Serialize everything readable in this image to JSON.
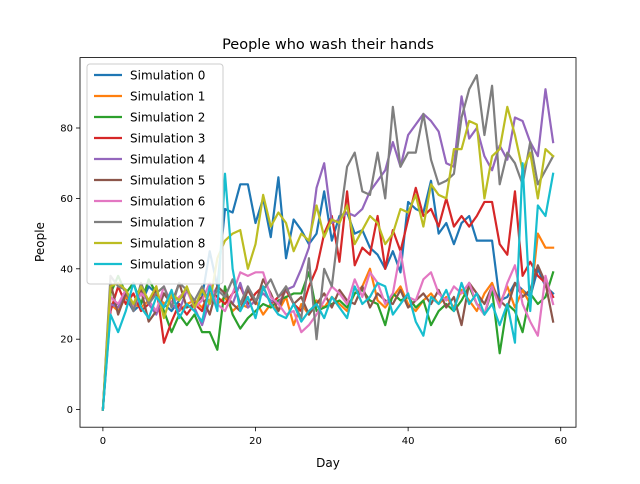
{
  "chart_data": {
    "type": "line",
    "title": "People who wash their hands",
    "xlabel": "Day",
    "ylabel": "People",
    "xlim": [
      -3,
      62
    ],
    "ylim": [
      -5,
      100
    ],
    "xticks": [
      0,
      20,
      40,
      60
    ],
    "yticks": [
      0,
      20,
      40,
      60,
      80
    ],
    "grid": false,
    "legend_position": "upper-left",
    "series": [
      {
        "name": "Simulation 0",
        "color": "#1f77b4",
        "values": [
          0,
          30,
          30,
          32,
          28,
          30,
          35,
          33,
          30,
          28,
          31,
          34,
          30,
          32,
          45,
          35,
          57,
          56,
          64,
          64,
          53,
          60,
          49,
          66,
          43,
          54,
          51,
          47,
          50,
          62,
          48,
          55,
          56,
          50,
          51,
          46,
          44,
          40,
          45,
          39,
          59,
          57,
          56,
          65,
          50,
          53,
          47,
          53,
          55,
          48,
          48,
          48,
          31,
          32,
          36,
          34,
          32,
          40,
          35,
          33
        ]
      },
      {
        "name": "Simulation 1",
        "color": "#ff7f0e",
        "values": [
          0,
          30,
          28,
          32,
          30,
          29,
          31,
          33,
          30,
          32,
          28,
          30,
          31,
          29,
          33,
          30,
          32,
          28,
          30,
          29,
          31,
          27,
          30,
          28,
          32,
          24,
          30,
          27,
          31,
          29,
          32,
          30,
          28,
          33,
          35,
          40,
          31,
          29,
          32,
          35,
          30,
          28,
          31,
          33,
          30,
          32,
          29,
          34,
          31,
          28,
          33,
          36,
          30,
          35,
          29,
          34,
          30,
          50,
          46,
          46
        ]
      },
      {
        "name": "Simulation 2",
        "color": "#2ca02c",
        "values": [
          0,
          33,
          38,
          33,
          36,
          30,
          37,
          33,
          28,
          22,
          27,
          24,
          27,
          22,
          22,
          17,
          35,
          27,
          23,
          26,
          28,
          30,
          29,
          31,
          32,
          33,
          33,
          39,
          28,
          29,
          30,
          31,
          29,
          33,
          34,
          31,
          30,
          24,
          33,
          31,
          32,
          29,
          31,
          24,
          28,
          30,
          28,
          31,
          35,
          30,
          27,
          34,
          16,
          30,
          28,
          22,
          33,
          30,
          32,
          39
        ]
      },
      {
        "name": "Simulation 3",
        "color": "#d62728",
        "values": [
          0,
          28,
          35,
          30,
          33,
          28,
          30,
          35,
          19,
          25,
          30,
          27,
          30,
          28,
          34,
          32,
          30,
          33,
          35,
          30,
          33,
          35,
          30,
          32,
          34,
          30,
          28,
          35,
          40,
          50,
          55,
          42,
          62,
          41,
          46,
          44,
          55,
          40,
          51,
          45,
          54,
          63,
          55,
          57,
          52,
          60,
          52,
          55,
          52,
          55,
          59,
          59,
          47,
          44,
          62,
          38,
          42,
          38,
          36,
          32
        ]
      },
      {
        "name": "Simulation 4",
        "color": "#9467bd",
        "values": [
          0,
          30,
          29,
          34,
          28,
          35,
          30,
          27,
          33,
          30,
          28,
          34,
          29,
          24,
          31,
          35,
          33,
          30,
          36,
          29,
          31,
          33,
          31,
          30,
          34,
          35,
          40,
          46,
          63,
          70,
          53,
          54,
          56,
          55,
          57,
          62,
          65,
          68,
          76,
          69,
          78,
          81,
          84,
          82,
          79,
          70,
          69,
          89,
          77,
          80,
          72,
          68,
          75,
          71,
          83,
          82,
          76,
          72,
          91,
          76
        ]
      },
      {
        "name": "Simulation 5",
        "color": "#8c564b",
        "values": [
          0,
          36,
          27,
          33,
          30,
          34,
          25,
          28,
          33,
          30,
          36,
          29,
          30,
          32,
          27,
          35,
          33,
          30,
          28,
          34,
          30,
          37,
          33,
          28,
          35,
          30,
          32,
          27,
          30,
          33,
          29,
          34,
          31,
          30,
          35,
          29,
          33,
          31,
          30,
          34,
          29,
          31,
          33,
          30,
          34,
          29,
          32,
          24,
          36,
          33,
          30,
          35,
          31,
          29,
          36,
          32,
          34,
          41,
          36,
          25
        ]
      },
      {
        "name": "Simulation 6",
        "color": "#e377c2",
        "values": [
          0,
          32,
          30,
          34,
          29,
          33,
          31,
          28,
          35,
          30,
          32,
          34,
          29,
          31,
          36,
          30,
          28,
          33,
          39,
          38,
          39,
          39,
          32,
          30,
          27,
          28,
          22,
          24,
          27,
          31,
          35,
          33,
          30,
          37,
          32,
          39,
          36,
          30,
          33,
          45,
          32,
          31,
          37,
          39,
          33,
          31,
          35,
          33,
          36,
          30,
          27,
          35,
          29,
          36,
          41,
          30,
          25,
          21,
          38,
          30
        ]
      },
      {
        "name": "Simulation 7",
        "color": "#7f7f7f",
        "values": [
          0,
          38,
          35,
          34,
          28,
          36,
          30,
          33,
          35,
          29,
          36,
          34,
          31,
          35,
          30,
          34,
          32,
          37,
          30,
          35,
          31,
          34,
          37,
          32,
          35,
          30,
          26,
          43,
          20,
          40,
          35,
          53,
          69,
          73,
          62,
          61,
          73,
          60,
          86,
          69,
          73,
          73,
          84,
          71,
          64,
          65,
          67,
          83,
          91,
          95,
          78,
          92,
          64,
          73,
          70,
          64,
          76,
          64,
          68,
          72
        ]
      },
      {
        "name": "Simulation 8",
        "color": "#bcbd22",
        "values": [
          0,
          35,
          36,
          34,
          30,
          35,
          31,
          35,
          26,
          33,
          31,
          35,
          29,
          34,
          30,
          43,
          48,
          50,
          51,
          40,
          47,
          61,
          52,
          56,
          53,
          45,
          50,
          48,
          58,
          49,
          54,
          53,
          58,
          47,
          51,
          55,
          53,
          47,
          50,
          57,
          56,
          61,
          52,
          64,
          61,
          60,
          74,
          74,
          82,
          81,
          60,
          72,
          74,
          86,
          78,
          68,
          73,
          60,
          74,
          72
        ]
      },
      {
        "name": "Simulation 9",
        "color": "#17becf",
        "values": [
          0,
          27,
          22,
          28,
          36,
          29,
          26,
          32,
          29,
          34,
          26,
          30,
          28,
          25,
          35,
          28,
          67,
          40,
          28,
          32,
          26,
          35,
          30,
          27,
          26,
          30,
          25,
          28,
          30,
          26,
          32,
          29,
          26,
          35,
          30,
          32,
          36,
          35,
          27,
          30,
          33,
          25,
          21,
          32,
          30,
          34,
          28,
          36,
          30,
          33,
          27,
          30,
          24,
          30,
          19,
          70,
          28,
          58,
          55,
          67
        ]
      }
    ]
  }
}
